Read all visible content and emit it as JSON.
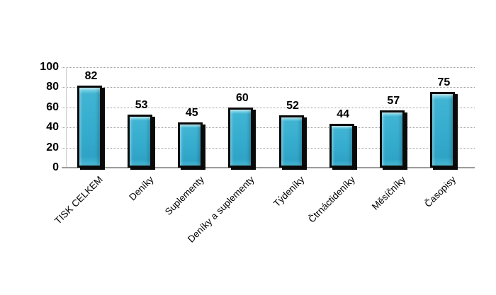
{
  "chart_data": {
    "type": "bar",
    "title": "",
    "xlabel": "",
    "ylabel": "",
    "categories": [
      "TISK CELKEM",
      "Deníky",
      "Suplementy",
      "Deníky a suplementy",
      "Týdeníky",
      "Čtrnáctideníky",
      "Měsíčníky",
      "Časopisy"
    ],
    "values": [
      82,
      53,
      45,
      60,
      52,
      44,
      57,
      75
    ],
    "ylim": [
      0,
      100
    ],
    "yticks": [
      0,
      20,
      40,
      60,
      80,
      100
    ],
    "grid": "horizontal-dotted",
    "legend_position": "none",
    "colors": {
      "bar_fill": "#35adce",
      "bar_top_highlight": "#ace7f2",
      "bar_border": "#0a0a0a",
      "grid_line": "#9e9e9e",
      "axis_line": "#9b9b9b",
      "text": "#000000",
      "background": "#ffffff"
    }
  }
}
